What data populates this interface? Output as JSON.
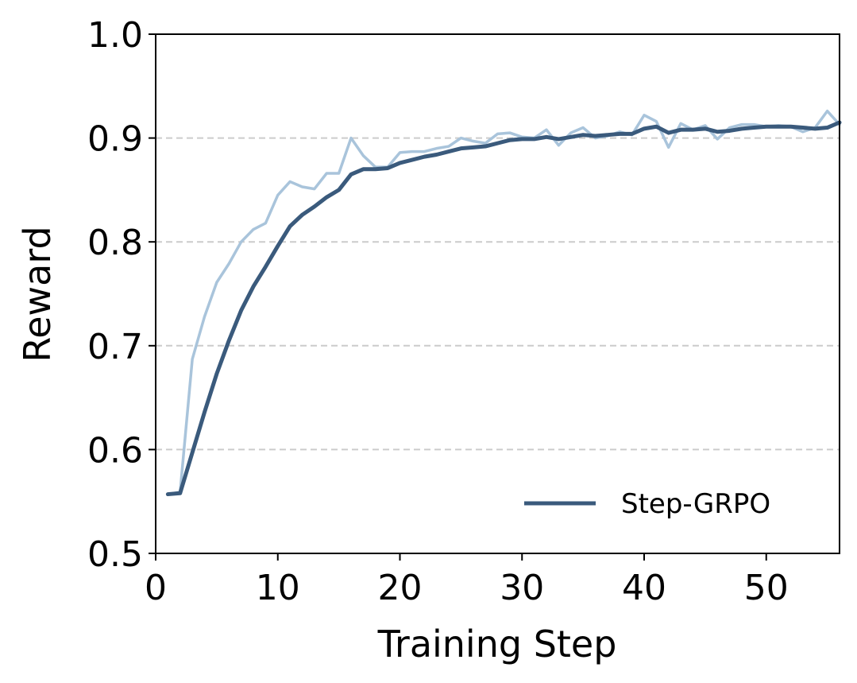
{
  "chart_data": {
    "type": "line",
    "title": "",
    "xlabel": "Training Step",
    "ylabel": "Reward",
    "xlim": [
      0,
      56
    ],
    "ylim": [
      0.5,
      1.0
    ],
    "xticks": [
      0,
      10,
      20,
      30,
      40,
      50
    ],
    "xtick_labels": [
      "0",
      "10",
      "20",
      "30",
      "40",
      "50"
    ],
    "yticks": [
      0.5,
      0.6,
      0.7,
      0.8,
      0.9,
      1.0
    ],
    "ytick_labels": [
      "0.5",
      "0.6",
      "0.7",
      "0.8",
      "0.9",
      "1.0"
    ],
    "grid": "horizontal dashed",
    "legend_position": "lower-right",
    "series": [
      {
        "name": "Step-GRPO",
        "style": "smoothed",
        "color": "#3a5a7c",
        "in_legend": true,
        "x": [
          1,
          2,
          3,
          4,
          5,
          6,
          7,
          8,
          9,
          10,
          11,
          12,
          13,
          14,
          15,
          16,
          17,
          18,
          19,
          20,
          21,
          22,
          23,
          24,
          25,
          26,
          27,
          28,
          29,
          30,
          31,
          32,
          33,
          34,
          35,
          36,
          37,
          38,
          39,
          40,
          41,
          42,
          43,
          44,
          45,
          46,
          47,
          48,
          49,
          50,
          51,
          52,
          53,
          54,
          55,
          56
        ],
        "y": [
          0.557,
          0.558,
          0.597,
          0.636,
          0.673,
          0.705,
          0.734,
          0.757,
          0.776,
          0.796,
          0.815,
          0.826,
          0.834,
          0.843,
          0.85,
          0.865,
          0.87,
          0.87,
          0.871,
          0.876,
          0.879,
          0.882,
          0.884,
          0.887,
          0.89,
          0.891,
          0.892,
          0.895,
          0.898,
          0.899,
          0.899,
          0.901,
          0.899,
          0.901,
          0.903,
          0.902,
          0.903,
          0.904,
          0.904,
          0.909,
          0.911,
          0.905,
          0.908,
          0.908,
          0.909,
          0.906,
          0.907,
          0.909,
          0.91,
          0.911,
          0.911,
          0.911,
          0.91,
          0.909,
          0.91,
          0.915
        ]
      },
      {
        "name": "raw",
        "style": "raw",
        "color": "#a9c4db",
        "in_legend": false,
        "x": [
          1,
          2,
          3,
          4,
          5,
          6,
          7,
          8,
          9,
          10,
          11,
          12,
          13,
          14,
          15,
          16,
          17,
          18,
          19,
          20,
          21,
          22,
          23,
          24,
          25,
          26,
          27,
          28,
          29,
          30,
          31,
          32,
          33,
          34,
          35,
          36,
          37,
          38,
          39,
          40,
          41,
          42,
          43,
          44,
          45,
          46,
          47,
          48,
          49,
          50,
          51,
          52,
          53,
          54,
          55,
          56
        ],
        "y": [
          0.557,
          0.559,
          0.687,
          0.728,
          0.761,
          0.779,
          0.8,
          0.812,
          0.818,
          0.845,
          0.858,
          0.853,
          0.851,
          0.866,
          0.866,
          0.9,
          0.883,
          0.872,
          0.872,
          0.886,
          0.887,
          0.887,
          0.89,
          0.892,
          0.9,
          0.897,
          0.895,
          0.904,
          0.905,
          0.901,
          0.9,
          0.908,
          0.893,
          0.905,
          0.91,
          0.9,
          0.902,
          0.906,
          0.903,
          0.922,
          0.916,
          0.891,
          0.914,
          0.908,
          0.912,
          0.899,
          0.91,
          0.913,
          0.913,
          0.911,
          0.912,
          0.911,
          0.906,
          0.91,
          0.926,
          0.913
        ]
      }
    ]
  }
}
